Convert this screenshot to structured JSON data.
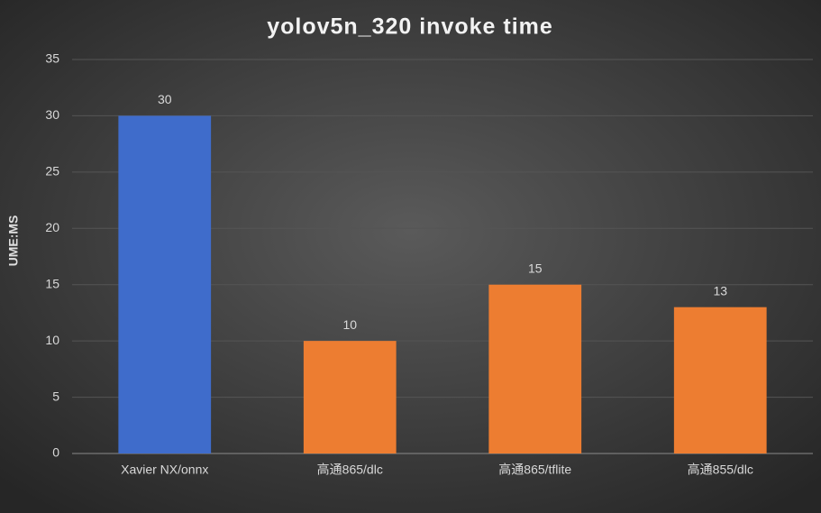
{
  "chart_data": {
    "type": "bar",
    "title": "yolov5n_320  invoke  time",
    "y_label": "UME:MS",
    "categories": [
      "Xavier NX/onnx",
      "高通865/dlc",
      "高通865/tflite",
      "高通855/dlc"
    ],
    "values": [
      30,
      10,
      15,
      13
    ],
    "colors": [
      "#3f6ccb",
      "#ed7d31",
      "#ed7d31",
      "#ed7d31"
    ],
    "ylim": [
      0,
      35
    ],
    "yticks": [
      0,
      5,
      10,
      15,
      20,
      25,
      30,
      35
    ],
    "grid": true
  }
}
